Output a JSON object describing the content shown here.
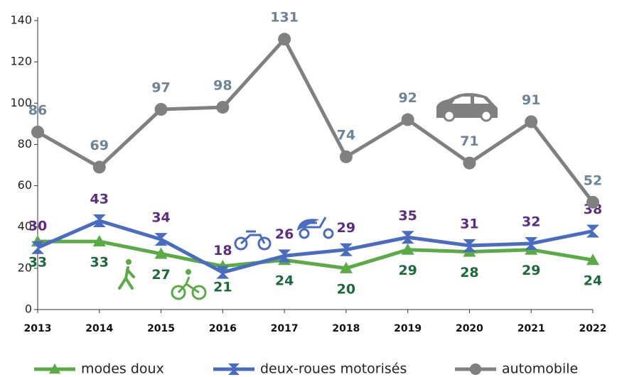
{
  "chart_data": {
    "type": "line",
    "x": [
      "2013",
      "2014",
      "2015",
      "2016",
      "2017",
      "2018",
      "2019",
      "2020",
      "2021",
      "2022"
    ],
    "ylim": [
      0,
      140
    ],
    "yticks": [
      0,
      20,
      40,
      60,
      80,
      100,
      120,
      140
    ],
    "grid": false,
    "legend": "bottom",
    "series": [
      {
        "name": "modes doux",
        "color": "#5aaa46",
        "label_color": "#1b6a3a",
        "marker": "triangle",
        "label_position": "below",
        "values": [
          33,
          33,
          27,
          21,
          24,
          20,
          29,
          28,
          29,
          24
        ]
      },
      {
        "name": "deux-roues motorisés",
        "color": "#4a6cc0",
        "label_color": "#5a2d82",
        "marker": "bowtie",
        "label_position": "above",
        "values": [
          30,
          43,
          34,
          18,
          26,
          29,
          35,
          31,
          32,
          38
        ]
      },
      {
        "name": "automobile",
        "color": "#808080",
        "label_color": "#6e8396",
        "marker": "circle",
        "label_position": "above",
        "values": [
          86,
          69,
          97,
          98,
          131,
          74,
          92,
          71,
          91,
          52
        ]
      }
    ]
  }
}
